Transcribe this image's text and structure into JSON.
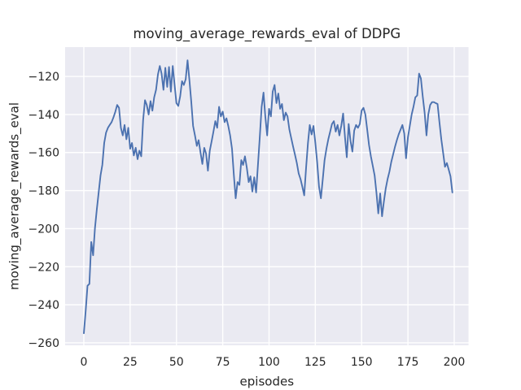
{
  "chart_data": {
    "type": "line",
    "title": "moving_average_rewards_eval of DDPG",
    "xlabel": "episodes",
    "ylabel": "moving_average_rewards_eval",
    "legend": null,
    "grid": true,
    "style": "seaborn-darkgrid",
    "colors": {
      "line": "#4c72b0",
      "plot_background": "#eaeaf2",
      "grid": "#ffffff",
      "figure_background": "#ffffff",
      "text": "#262626"
    },
    "xlim": [
      -10.1,
      207.7
    ],
    "ylim": [
      -261.3,
      -104.6
    ],
    "xticks": [
      0,
      25,
      50,
      75,
      100,
      125,
      150,
      175,
      200
    ],
    "xtick_labels": [
      "0",
      "25",
      "50",
      "75",
      "100",
      "125",
      "150",
      "175",
      "200"
    ],
    "yticks": [
      -260,
      -240,
      -220,
      -200,
      -180,
      -160,
      -140,
      -120
    ],
    "ytick_labels": [
      "−260",
      "−240",
      "−220",
      "−200",
      "−180",
      "−160",
      "−140",
      "−120"
    ],
    "series": [
      {
        "name": "DDPG",
        "x": [
          0,
          1,
          2,
          3,
          4,
          5,
          6,
          7,
          8,
          9,
          10,
          11,
          12,
          13,
          14,
          15,
          16,
          17,
          18,
          19,
          20,
          21,
          22,
          23,
          24,
          25,
          26,
          27,
          28,
          29,
          30,
          31,
          32,
          33,
          34,
          35,
          36,
          37,
          38,
          39,
          40,
          41,
          42,
          43,
          44,
          45,
          46,
          47,
          48,
          49,
          50,
          51,
          52,
          53,
          54,
          55,
          56,
          57,
          58,
          59,
          60,
          61,
          62,
          63,
          64,
          65,
          66,
          67,
          68,
          69,
          70,
          71,
          72,
          73,
          74,
          75,
          76,
          77,
          78,
          79,
          80,
          81,
          82,
          83,
          84,
          85,
          86,
          87,
          88,
          89,
          90,
          91,
          92,
          93,
          94,
          95,
          96,
          97,
          98,
          99,
          100,
          101,
          102,
          103,
          104,
          105,
          106,
          107,
          108,
          109,
          110,
          111,
          112,
          113,
          114,
          115,
          116,
          117,
          118,
          119,
          120,
          121,
          122,
          123,
          124,
          125,
          126,
          127,
          128,
          129,
          130,
          131,
          132,
          133,
          134,
          135,
          136,
          137,
          138,
          139,
          140,
          141,
          142,
          143,
          144,
          145,
          146,
          147,
          148,
          149,
          150,
          151,
          152,
          153,
          154,
          155,
          156,
          157,
          158,
          159,
          160,
          161,
          162,
          163,
          164,
          165,
          166,
          167,
          168,
          169,
          170,
          171,
          172,
          173,
          174,
          175,
          176,
          177,
          178,
          179,
          180,
          181,
          182,
          183,
          184,
          185,
          186,
          187,
          188,
          189,
          190,
          191,
          192,
          193,
          194,
          195,
          196,
          197,
          198,
          199
        ],
        "values": [
          -255,
          -243,
          -230,
          -229,
          -207,
          -214,
          -200,
          -190,
          -181,
          -172,
          -166.5,
          -155,
          -149.5,
          -147,
          -145.5,
          -144,
          -141.5,
          -138.5,
          -135,
          -136.5,
          -147,
          -151,
          -145.5,
          -153,
          -147,
          -158,
          -155,
          -161.5,
          -157.5,
          -163.5,
          -159,
          -162,
          -143,
          -132.5,
          -135,
          -140,
          -133,
          -138,
          -131,
          -127,
          -119,
          -114.5,
          -118.5,
          -127,
          -115.5,
          -125.5,
          -115,
          -128,
          -114.5,
          -124.5,
          -134,
          -135.5,
          -130.5,
          -122.5,
          -124.5,
          -121.5,
          -111.5,
          -122,
          -133,
          -146,
          -151,
          -156.5,
          -153.5,
          -160,
          -166,
          -157.5,
          -160.5,
          -169.5,
          -159,
          -154,
          -149,
          -143.5,
          -147,
          -136,
          -141,
          -138.5,
          -144,
          -142,
          -146,
          -151,
          -158,
          -172,
          -184,
          -175.5,
          -177,
          -164,
          -166.5,
          -162,
          -168,
          -175.5,
          -172.5,
          -180.5,
          -173,
          -181,
          -167,
          -152,
          -136,
          -128.5,
          -141,
          -151,
          -137,
          -141,
          -128,
          -124.5,
          -134,
          -129,
          -137,
          -134.5,
          -143,
          -139,
          -141,
          -148,
          -152.5,
          -157,
          -161,
          -165.5,
          -171,
          -174,
          -178,
          -182.5,
          -168,
          -155,
          -145.5,
          -150.5,
          -146,
          -155,
          -165,
          -178,
          -184,
          -174,
          -164,
          -158,
          -153,
          -149,
          -145,
          -143.5,
          -149,
          -145.5,
          -151,
          -146,
          -139.5,
          -152,
          -162.5,
          -145,
          -154,
          -159.5,
          -148.5,
          -145.5,
          -147,
          -145,
          -138,
          -136.5,
          -140,
          -148,
          -156,
          -162,
          -167,
          -172,
          -181,
          -192,
          -181.5,
          -193.5,
          -186,
          -179,
          -174,
          -170,
          -165,
          -161,
          -157,
          -153.5,
          -150.5,
          -148,
          -145.5,
          -150,
          -163,
          -152,
          -146,
          -140,
          -136,
          -131,
          -130,
          -118.5,
          -121,
          -130.5,
          -139,
          -151,
          -140,
          -135,
          -133.5,
          -133.5,
          -134,
          -134.5,
          -144,
          -153,
          -160,
          -167.5,
          -165.5,
          -169,
          -172.5,
          -181
        ]
      }
    ]
  }
}
